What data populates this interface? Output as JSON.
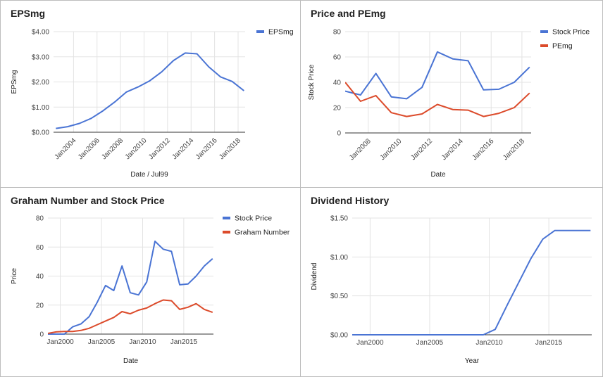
{
  "chart_data": [
    {
      "type": "line",
      "title": "EPSmg",
      "xlabel": "Date / Jul99",
      "ylabel": "EPSmg",
      "xlim": [
        2002.3,
        2018.6
      ],
      "ylim": [
        0,
        4
      ],
      "x_ticks": [
        2004,
        2006,
        2008,
        2010,
        2012,
        2014,
        2016,
        2018
      ],
      "x_tick_labels": [
        "Jan2004",
        "Jan2006",
        "Jan2008",
        "Jan2010",
        "Jan2012",
        "Jan2014",
        "Jan2016",
        "Jan2018"
      ],
      "y_ticks": [
        0,
        1,
        2,
        3,
        4
      ],
      "y_tick_labels": [
        "$0.00",
        "$1.00",
        "$2.00",
        "$3.00",
        "$4.00"
      ],
      "x_tick_rotation": -45,
      "legend_position": "top-right",
      "grid": true,
      "series": [
        {
          "name": "EPSmg",
          "color": "#4a74d4",
          "x": [
            2002.5,
            2003.5,
            2004.5,
            2005.5,
            2006.5,
            2007.5,
            2008.5,
            2009.5,
            2010.5,
            2011.5,
            2012.5,
            2013.5,
            2014.5,
            2015.5,
            2016.5,
            2017.5,
            2018.5
          ],
          "y": [
            0.15,
            0.22,
            0.35,
            0.55,
            0.85,
            1.2,
            1.6,
            1.8,
            2.05,
            2.4,
            2.85,
            3.15,
            3.12,
            2.6,
            2.2,
            2.02,
            1.65
          ]
        }
      ]
    },
    {
      "type": "line",
      "title": "Price and PEmg",
      "xlabel": "Date",
      "ylabel": "Stock Price",
      "xlim": [
        2006.5,
        2018.6
      ],
      "ylim": [
        0,
        80
      ],
      "x_ticks": [
        2008,
        2010,
        2012,
        2014,
        2016,
        2018
      ],
      "x_tick_labels": [
        "Jan2008",
        "Jan2010",
        "Jan2012",
        "Jan2014",
        "Jan2016",
        "Jan2018"
      ],
      "y_ticks": [
        0,
        20,
        40,
        60,
        80
      ],
      "y_tick_labels": [
        "0",
        "20",
        "40",
        "60",
        "80"
      ],
      "x_tick_rotation": -45,
      "legend_position": "top-right",
      "grid": true,
      "series": [
        {
          "name": "Stock Price",
          "color": "#4a74d4",
          "x": [
            2006.5,
            2007.5,
            2008.5,
            2009.5,
            2010.5,
            2011.5,
            2012.5,
            2013.5,
            2014.5,
            2015.5,
            2016.5,
            2017.5,
            2018.5
          ],
          "y": [
            33,
            30,
            47,
            28.5,
            27,
            36,
            64,
            58.5,
            57,
            34,
            34.5,
            40,
            52
          ]
        },
        {
          "name": "PEmg",
          "color": "#dc4b2b",
          "x": [
            2006.5,
            2007.5,
            2008.5,
            2009.5,
            2010.5,
            2011.5,
            2012.5,
            2013.5,
            2014.5,
            2015.5,
            2016.5,
            2017.5,
            2018.5
          ],
          "y": [
            40,
            25,
            29.5,
            16,
            13,
            15,
            22.5,
            18.5,
            18,
            13,
            15.5,
            20,
            31.5
          ]
        }
      ]
    },
    {
      "type": "line",
      "title": "Graham Number and Stock Price",
      "xlabel": "Date",
      "ylabel": "Price",
      "xlim": [
        1998.5,
        2018.6
      ],
      "ylim": [
        0,
        80
      ],
      "x_ticks": [
        2000,
        2005,
        2010,
        2015
      ],
      "x_tick_labels": [
        "Jan2000",
        "Jan2005",
        "Jan2010",
        "Jan2015"
      ],
      "y_ticks": [
        0,
        20,
        40,
        60,
        80
      ],
      "y_tick_labels": [
        "0",
        "20",
        "40",
        "60",
        "80"
      ],
      "x_tick_rotation": 0,
      "legend_position": "top-right",
      "grid": true,
      "series": [
        {
          "name": "Stock Price",
          "color": "#4a74d4",
          "x": [
            1998.5,
            1999.5,
            2000.5,
            2001.5,
            2002.5,
            2003.5,
            2004.5,
            2005.5,
            2006.5,
            2007.5,
            2008.5,
            2009.5,
            2010.5,
            2011.5,
            2012.5,
            2013.5,
            2014.5,
            2015.5,
            2016.5,
            2017.5,
            2018.5
          ],
          "y": [
            0,
            0,
            0,
            5,
            7,
            12,
            22,
            33.5,
            30,
            47,
            28.5,
            27,
            36,
            64,
            58.5,
            57,
            34,
            34.5,
            40,
            47,
            52
          ]
        },
        {
          "name": "Graham Number",
          "color": "#dc4b2b",
          "x": [
            1998.5,
            1999.5,
            2000.5,
            2001.5,
            2002.5,
            2003.5,
            2004.5,
            2005.5,
            2006.5,
            2007.5,
            2008.5,
            2009.5,
            2010.5,
            2011.5,
            2012.5,
            2013.5,
            2014.5,
            2015.5,
            2016.5,
            2017.5,
            2018.5
          ],
          "y": [
            0.5,
            1.5,
            1.8,
            1.8,
            2.5,
            4,
            6.5,
            9,
            11.5,
            15.5,
            14,
            16.5,
            18,
            21,
            23.5,
            23,
            17,
            18.5,
            21,
            17,
            15
          ]
        }
      ]
    },
    {
      "type": "line",
      "title": "Dividend History",
      "xlabel": "Year",
      "ylabel": "Dividend",
      "xlim": [
        1998.5,
        2018.6
      ],
      "ylim": [
        0,
        1.5
      ],
      "x_ticks": [
        2000,
        2005,
        2010,
        2015
      ],
      "x_tick_labels": [
        "Jan2000",
        "Jan2005",
        "Jan2010",
        "Jan2015"
      ],
      "y_ticks": [
        0,
        0.5,
        1,
        1.5
      ],
      "y_tick_labels": [
        "$0.00",
        "$0.50",
        "$1.00",
        "$1.50"
      ],
      "x_tick_rotation": 0,
      "legend_position": "none",
      "grid": true,
      "series": [
        {
          "name": "",
          "color": "#4a74d4",
          "x": [
            1998.5,
            2009.5,
            2010.5,
            2011.5,
            2012.5,
            2013.5,
            2014.5,
            2015.5,
            2016.5,
            2017.5,
            2018.5
          ],
          "y": [
            0,
            0,
            0.07,
            0.38,
            0.68,
            0.98,
            1.23,
            1.34,
            1.34,
            1.34,
            1.34
          ]
        }
      ]
    }
  ]
}
